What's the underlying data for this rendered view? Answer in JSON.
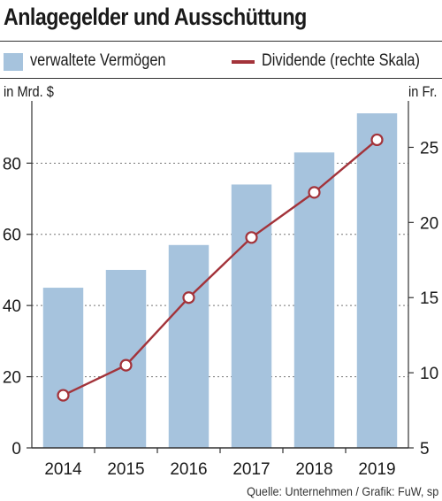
{
  "title": "Anlagegelder und Ausschüttung",
  "legend": {
    "bar_label": "verwaltete Vermögen",
    "line_label": "Dividende (rechte  Skala)"
  },
  "units": {
    "left": "in Mrd. $",
    "right": "in Fr."
  },
  "source": "Quelle: Unternehmen / Grafik: FuW, sp",
  "colors": {
    "bar": "#a6c3dd",
    "line": "#a3333a",
    "marker_fill": "#ffffff"
  },
  "chart_data": {
    "type": "bar+line",
    "categories": [
      "2014",
      "2015",
      "2016",
      "2017",
      "2018",
      "2019"
    ],
    "series": [
      {
        "name": "verwaltete Vermögen",
        "type": "bar",
        "axis": "left",
        "values": [
          45,
          50,
          57,
          74,
          83,
          94
        ]
      },
      {
        "name": "Dividende (rechte  Skala)",
        "type": "line",
        "axis": "right",
        "values": [
          8.5,
          10.5,
          15,
          19,
          22,
          25.5
        ]
      }
    ],
    "y_left": {
      "range": [
        0,
        95
      ],
      "ticks": [
        0,
        20,
        40,
        60,
        80
      ]
    },
    "y_right": {
      "range": [
        5,
        27.5
      ],
      "ticks": [
        5,
        10,
        15,
        20,
        25
      ]
    },
    "grid": "dotted horizontal"
  }
}
